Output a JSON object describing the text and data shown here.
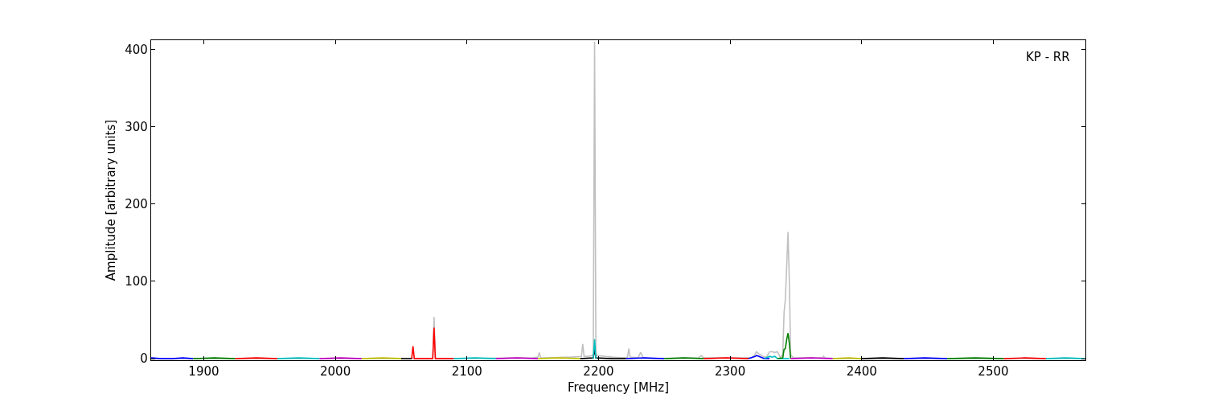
{
  "chart_data": {
    "type": "line",
    "xlabel": "Frequency [MHz]",
    "ylabel": "Amplitude [arbitrary units]",
    "annotations": [
      "KP - RR"
    ],
    "xlim": [
      1860,
      2570
    ],
    "ylim": [
      -2,
      412
    ],
    "xticks": [
      1900,
      2000,
      2100,
      2200,
      2300,
      2400,
      2500
    ],
    "yticks": [
      0,
      100,
      200,
      300,
      400
    ],
    "marker": "none",
    "line_style": "solid",
    "series": [
      {
        "color": "#c0c0c0",
        "x": [
          1860,
          2070,
          2074,
          2075,
          2076,
          2080,
          2150,
          2154,
          2155,
          2156,
          2160,
          2180,
          2187,
          2188,
          2189,
          2192,
          2195,
          2196,
          2197,
          2198,
          2200,
          2205,
          2210,
          2220,
          2222,
          2223,
          2224,
          2230,
          2232,
          2234,
          2240,
          2276,
          2278,
          2280,
          2316,
          2318,
          2320,
          2322,
          2326,
          2328,
          2330,
          2332,
          2334,
          2336,
          2338,
          2340,
          2341,
          2342,
          2343,
          2344,
          2345,
          2346,
          2348,
          2360,
          2370,
          2371,
          2372,
          2380,
          2570
        ],
        "values": [
          0,
          0,
          0,
          54,
          0,
          0,
          1,
          2,
          8,
          1,
          1,
          2,
          3,
          19,
          3,
          3,
          4,
          5,
          410,
          5,
          4,
          3,
          2,
          1,
          2,
          13,
          2,
          1,
          8,
          1,
          0,
          1,
          4,
          1,
          1,
          3,
          9,
          6,
          2,
          3,
          9,
          9,
          8,
          9,
          2,
          5,
          60,
          77,
          120,
          164,
          100,
          5,
          1,
          1,
          1,
          3,
          1,
          0,
          0
        ]
      },
      {
        "color": "#0000ff",
        "x": [
          1860,
          1868,
          1876,
          1884,
          1892
        ],
        "values": [
          1,
          0,
          0,
          1,
          0
        ]
      },
      {
        "color": "#008000",
        "x": [
          1892,
          1908,
          1924
        ],
        "values": [
          0,
          1,
          0
        ]
      },
      {
        "color": "#ff0000",
        "x": [
          1924,
          1940,
          1956
        ],
        "values": [
          0,
          1,
          0
        ]
      },
      {
        "color": "#00bfbf",
        "x": [
          1956,
          1972,
          1988
        ],
        "values": [
          0,
          1,
          0
        ]
      },
      {
        "color": "#bf00bf",
        "x": [
          1988,
          2004,
          2020
        ],
        "values": [
          0,
          1,
          0
        ]
      },
      {
        "color": "#bfbf00",
        "x": [
          2020,
          2036,
          2052
        ],
        "values": [
          0,
          1,
          0
        ]
      },
      {
        "color": "#000000",
        "x": [
          2050,
          2058
        ],
        "values": [
          0,
          0
        ]
      },
      {
        "color": "#ff0000",
        "x": [
          2058,
          2059,
          2060,
          2074,
          2075,
          2076,
          2090
        ],
        "values": [
          0,
          16,
          0,
          0,
          40,
          0,
          0
        ]
      },
      {
        "color": "#00bfbf",
        "x": [
          2090,
          2106,
          2122
        ],
        "values": [
          0,
          1,
          0
        ]
      },
      {
        "color": "#bf00bf",
        "x": [
          2122,
          2138,
          2154
        ],
        "values": [
          0,
          1,
          0
        ]
      },
      {
        "color": "#bfbf00",
        "x": [
          2154,
          2170,
          2186
        ],
        "values": [
          0,
          1,
          0
        ]
      },
      {
        "color": "#000000",
        "x": [
          2186,
          2196,
          2197,
          2198,
          2210,
          2221
        ],
        "values": [
          0,
          1,
          12,
          1,
          0,
          0
        ]
      },
      {
        "color": "#00bfbf",
        "x": [
          2196,
          2197,
          2198
        ],
        "values": [
          0,
          25,
          0
        ]
      },
      {
        "color": "#0000ff",
        "x": [
          2221,
          2235,
          2250
        ],
        "values": [
          0,
          1,
          0
        ]
      },
      {
        "color": "#008000",
        "x": [
          2250,
          2265,
          2280
        ],
        "values": [
          0,
          1,
          0
        ]
      },
      {
        "color": "#ff0000",
        "x": [
          2280,
          2297,
          2314
        ],
        "values": [
          0,
          1,
          0
        ]
      },
      {
        "color": "#0000ff",
        "x": [
          2314,
          2319,
          2320,
          2322,
          2326,
          2330
        ],
        "values": [
          0,
          3,
          4,
          3,
          0,
          0
        ]
      },
      {
        "color": "#00bfbf",
        "x": [
          2326,
          2330,
          2332,
          2334,
          2336,
          2345
        ],
        "values": [
          0,
          3,
          2,
          3,
          0,
          0
        ]
      },
      {
        "color": "#008000",
        "x": [
          2336,
          2340,
          2341,
          2342,
          2343,
          2344,
          2345,
          2346
        ],
        "values": [
          0,
          1,
          12,
          13,
          25,
          33,
          20,
          0
        ]
      },
      {
        "color": "#bf00bf",
        "x": [
          2346,
          2362,
          2378
        ],
        "values": [
          0,
          1,
          0
        ]
      },
      {
        "color": "#bfbf00",
        "x": [
          2378,
          2390,
          2400
        ],
        "values": [
          0,
          1,
          0
        ]
      },
      {
        "color": "#000000",
        "x": [
          2400,
          2416,
          2432
        ],
        "values": [
          0,
          1,
          0
        ]
      },
      {
        "color": "#0000ff",
        "x": [
          2432,
          2448,
          2465
        ],
        "values": [
          0,
          1,
          0
        ]
      },
      {
        "color": "#008000",
        "x": [
          2465,
          2486,
          2508
        ],
        "values": [
          0,
          1,
          0
        ]
      },
      {
        "color": "#ff0000",
        "x": [
          2508,
          2524,
          2540
        ],
        "values": [
          0,
          1,
          0
        ]
      },
      {
        "color": "#00bfbf",
        "x": [
          2540,
          2555,
          2570
        ],
        "values": [
          0,
          1,
          0
        ]
      }
    ]
  }
}
